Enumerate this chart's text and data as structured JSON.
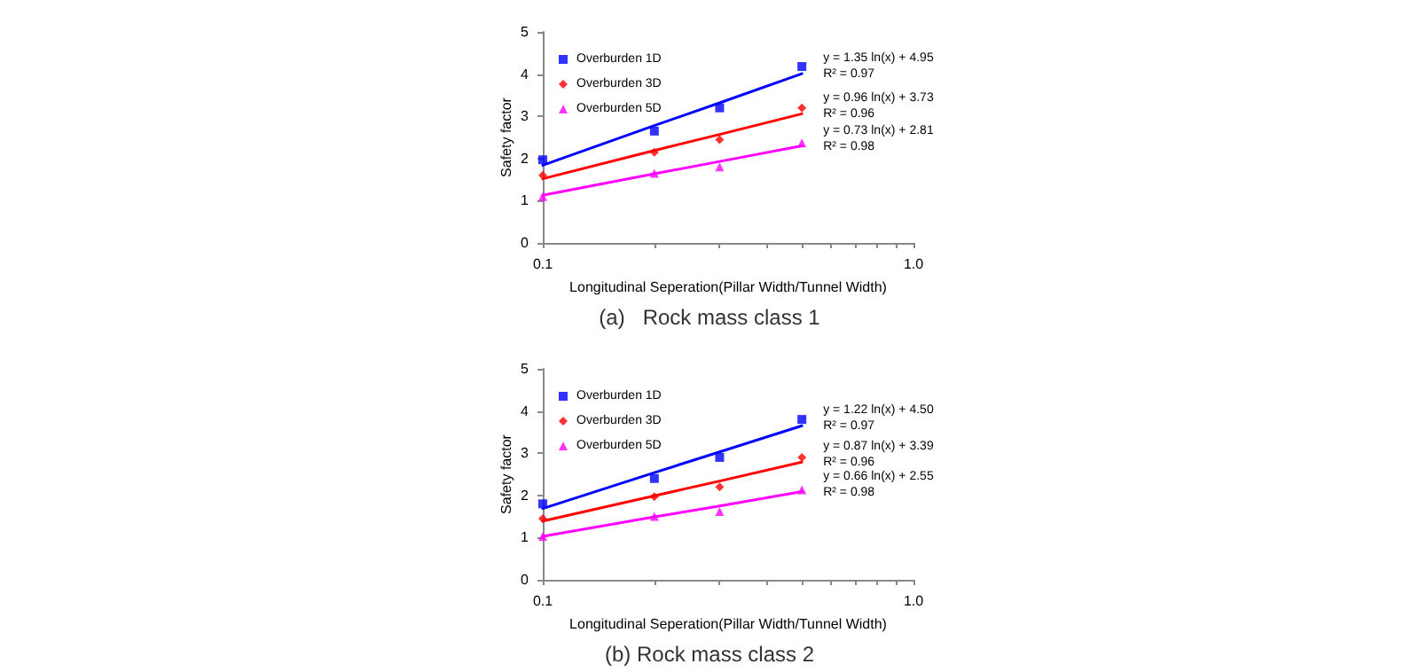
{
  "chart_data": [
    {
      "type": "scatter",
      "xlabel": "Longitudinal Seperation(Pillar Width/Tunnel Width)",
      "ylabel": "Safety factor",
      "log": "x",
      "grid": false,
      "legend": "top left",
      "xlim": [
        0.1,
        1
      ],
      "xticks": [
        {
          "value": 0.1,
          "label": "0.1"
        },
        {
          "value": 0.2,
          "label": null
        },
        {
          "value": 0.3,
          "label": null
        },
        {
          "value": 0.4,
          "label": null
        },
        {
          "value": 0.5,
          "label": null
        },
        {
          "value": 0.6,
          "label": null
        },
        {
          "value": 0.7,
          "label": null
        },
        {
          "value": 0.8,
          "label": null
        },
        {
          "value": 0.9,
          "label": null
        },
        {
          "value": 1,
          "label": "1.0"
        }
      ],
      "ylim": [
        0,
        5
      ],
      "yticks": [
        0,
        1,
        2,
        3,
        4,
        5
      ],
      "x": [
        0.1,
        0.2,
        0.3,
        0.5
      ],
      "series": [
        {
          "name": "Overburden 1D",
          "color": "#0000ff",
          "marker": "square",
          "values": [
            1.97,
            2.65,
            3.2,
            4.18
          ]
        },
        {
          "name": "Overburden 3D",
          "color": "#ff0000",
          "marker": "diamond",
          "values": [
            1.6,
            2.15,
            2.45,
            3.2
          ]
        },
        {
          "name": "Overburden 5D",
          "color": "#ff00ff",
          "marker": "triangle",
          "values": [
            1.1,
            1.65,
            1.8,
            2.37
          ]
        },
        {
          "type": "line",
          "color": "#0000ff",
          "marker": "none",
          "values": [
            1.84,
            2.78,
            3.32,
            4.01
          ]
        },
        {
          "type": "line",
          "color": "#ff0000",
          "marker": "none",
          "values": [
            1.52,
            2.19,
            2.57,
            3.06
          ]
        },
        {
          "type": "line",
          "color": "#ff00ff",
          "marker": "none",
          "values": [
            1.13,
            1.64,
            1.93,
            2.3
          ]
        }
      ],
      "annotations": [
        "y = 1.35 ln(x) + 4.95\nR² = 0.97",
        "y = 0.96 ln(x) + 3.73\nR² = 0.96",
        "y = 0.73 ln(x) + 2.81\nR² = 0.98",
        "(a)   Rock mass class 1"
      ]
    },
    {
      "type": "scatter",
      "xlabel": "Longitudinal Seperation(Pillar Width/Tunnel Width)",
      "ylabel": "Safety factor",
      "log": "x",
      "grid": false,
      "legend": "top left",
      "xlim": [
        0.1,
        1
      ],
      "xticks": [
        {
          "value": 0.1,
          "label": "0.1"
        },
        {
          "value": 0.2,
          "label": null
        },
        {
          "value": 0.3,
          "label": null
        },
        {
          "value": 0.4,
          "label": null
        },
        {
          "value": 0.5,
          "label": null
        },
        {
          "value": 0.6,
          "label": null
        },
        {
          "value": 0.7,
          "label": null
        },
        {
          "value": 0.8,
          "label": null
        },
        {
          "value": 0.9,
          "label": null
        },
        {
          "value": 1,
          "label": "1.0"
        }
      ],
      "ylim": [
        0,
        5
      ],
      "yticks": [
        0,
        1,
        2,
        3,
        4,
        5
      ],
      "x": [
        0.1,
        0.2,
        0.3,
        0.5
      ],
      "series": [
        {
          "name": "Overburden 1D",
          "color": "#0000ff",
          "marker": "square",
          "values": [
            1.8,
            2.4,
            2.9,
            3.8
          ]
        },
        {
          "name": "Overburden 3D",
          "color": "#ff0000",
          "marker": "diamond",
          "values": [
            1.45,
            1.97,
            2.2,
            2.9
          ]
        },
        {
          "name": "Overburden 5D",
          "color": "#ff00ff",
          "marker": "triangle",
          "values": [
            1.03,
            1.5,
            1.62,
            2.13
          ]
        },
        {
          "type": "line",
          "color": "#0000ff",
          "marker": "none",
          "values": [
            1.69,
            2.54,
            3.03,
            3.65
          ]
        },
        {
          "type": "line",
          "color": "#ff0000",
          "marker": "none",
          "values": [
            1.39,
            1.99,
            2.34,
            2.79
          ]
        },
        {
          "type": "line",
          "color": "#ff00ff",
          "marker": "none",
          "values": [
            1.03,
            1.49,
            1.75,
            2.09
          ]
        }
      ],
      "annotations": [
        "y = 1.22 ln(x) + 4.50\nR² = 0.97",
        "y = 0.87 ln(x) + 3.39\nR² = 0.96",
        "y = 0.66 ln(x) + 2.55\nR² = 0.98",
        "(b) Rock mass class 2"
      ]
    }
  ]
}
